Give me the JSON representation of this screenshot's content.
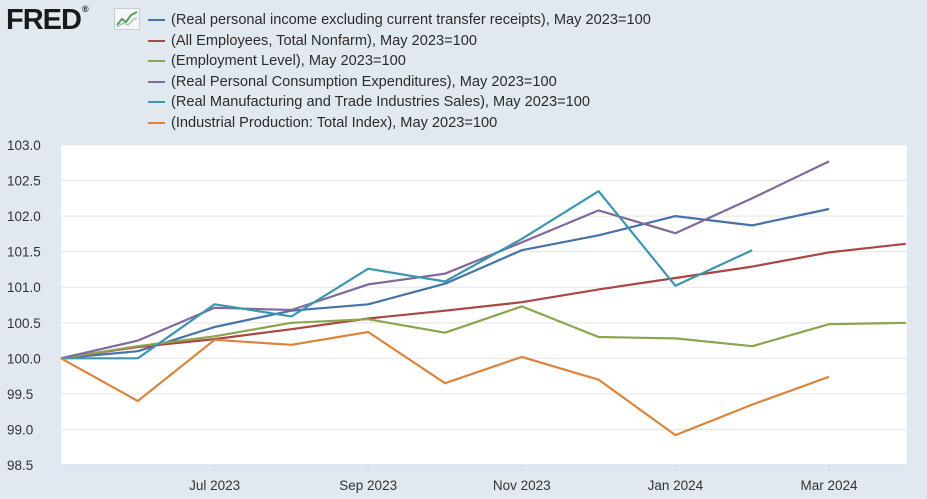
{
  "logo": {
    "text": "FRED",
    "mark": "®",
    "icon": "chart-line-icon"
  },
  "chart_data": {
    "type": "line",
    "title": "",
    "xlabel": "",
    "ylabel": "",
    "ylim": [
      98.5,
      103.0
    ],
    "yticks": [
      "103.0",
      "102.5",
      "102.0",
      "101.5",
      "101.0",
      "100.5",
      "100.0",
      "99.5",
      "99.0",
      "98.5"
    ],
    "ytick_values": [
      103.0,
      102.5,
      102.0,
      101.5,
      101.0,
      100.5,
      100.0,
      99.5,
      99.0,
      98.5
    ],
    "x": [
      "2023-05",
      "2023-06",
      "2023-07",
      "2023-08",
      "2023-09",
      "2023-10",
      "2023-11",
      "2023-12",
      "2024-01",
      "2024-02",
      "2024-03",
      "2024-04"
    ],
    "xticks": [
      {
        "label": "Jul 2023",
        "index": 2
      },
      {
        "label": "Sep 2023",
        "index": 4
      },
      {
        "label": "Nov 2023",
        "index": 6
      },
      {
        "label": "Jan 2024",
        "index": 8
      },
      {
        "label": "Mar 2024",
        "index": 10
      }
    ],
    "grid": true,
    "legend_position": "top",
    "series": [
      {
        "name": "(Real personal income excluding current transfer receipts), May 2023=100",
        "color": "#4572a7",
        "values": [
          100.0,
          100.1,
          100.44,
          100.67,
          100.76,
          101.05,
          101.52,
          101.73,
          102.0,
          101.87,
          102.1,
          null
        ]
      },
      {
        "name": "(All Employees, Total Nonfarm), May 2023=100",
        "color": "#aa4643",
        "values": [
          100.0,
          100.16,
          100.27,
          100.41,
          100.56,
          100.67,
          100.79,
          100.97,
          101.13,
          101.29,
          101.49,
          101.61
        ]
      },
      {
        "name": "(Employment Level), May 2023=100",
        "color": "#89a54e",
        "values": [
          100.0,
          100.17,
          100.31,
          100.5,
          100.55,
          100.36,
          100.73,
          100.3,
          100.28,
          100.17,
          100.48,
          100.5
        ]
      },
      {
        "name": "(Real Personal Consumption Expenditures), May 2023=100",
        "color": "#80699b",
        "values": [
          100.0,
          100.25,
          100.71,
          100.68,
          101.04,
          101.19,
          101.63,
          102.08,
          101.76,
          102.25,
          102.77,
          null
        ]
      },
      {
        "name": "(Real Manufacturing and Trade Industries Sales), May 2023=100",
        "color": "#3d96ae",
        "values": [
          100.0,
          100.0,
          100.76,
          100.59,
          101.26,
          101.08,
          101.68,
          102.35,
          101.02,
          101.52,
          null,
          null
        ]
      },
      {
        "name": "(Industrial Production: Total Index), May 2023=100",
        "color": "#db843d",
        "values": [
          100.0,
          99.4,
          100.26,
          100.19,
          100.37,
          99.65,
          100.02,
          99.7,
          98.92,
          99.35,
          99.74,
          null
        ]
      }
    ]
  }
}
